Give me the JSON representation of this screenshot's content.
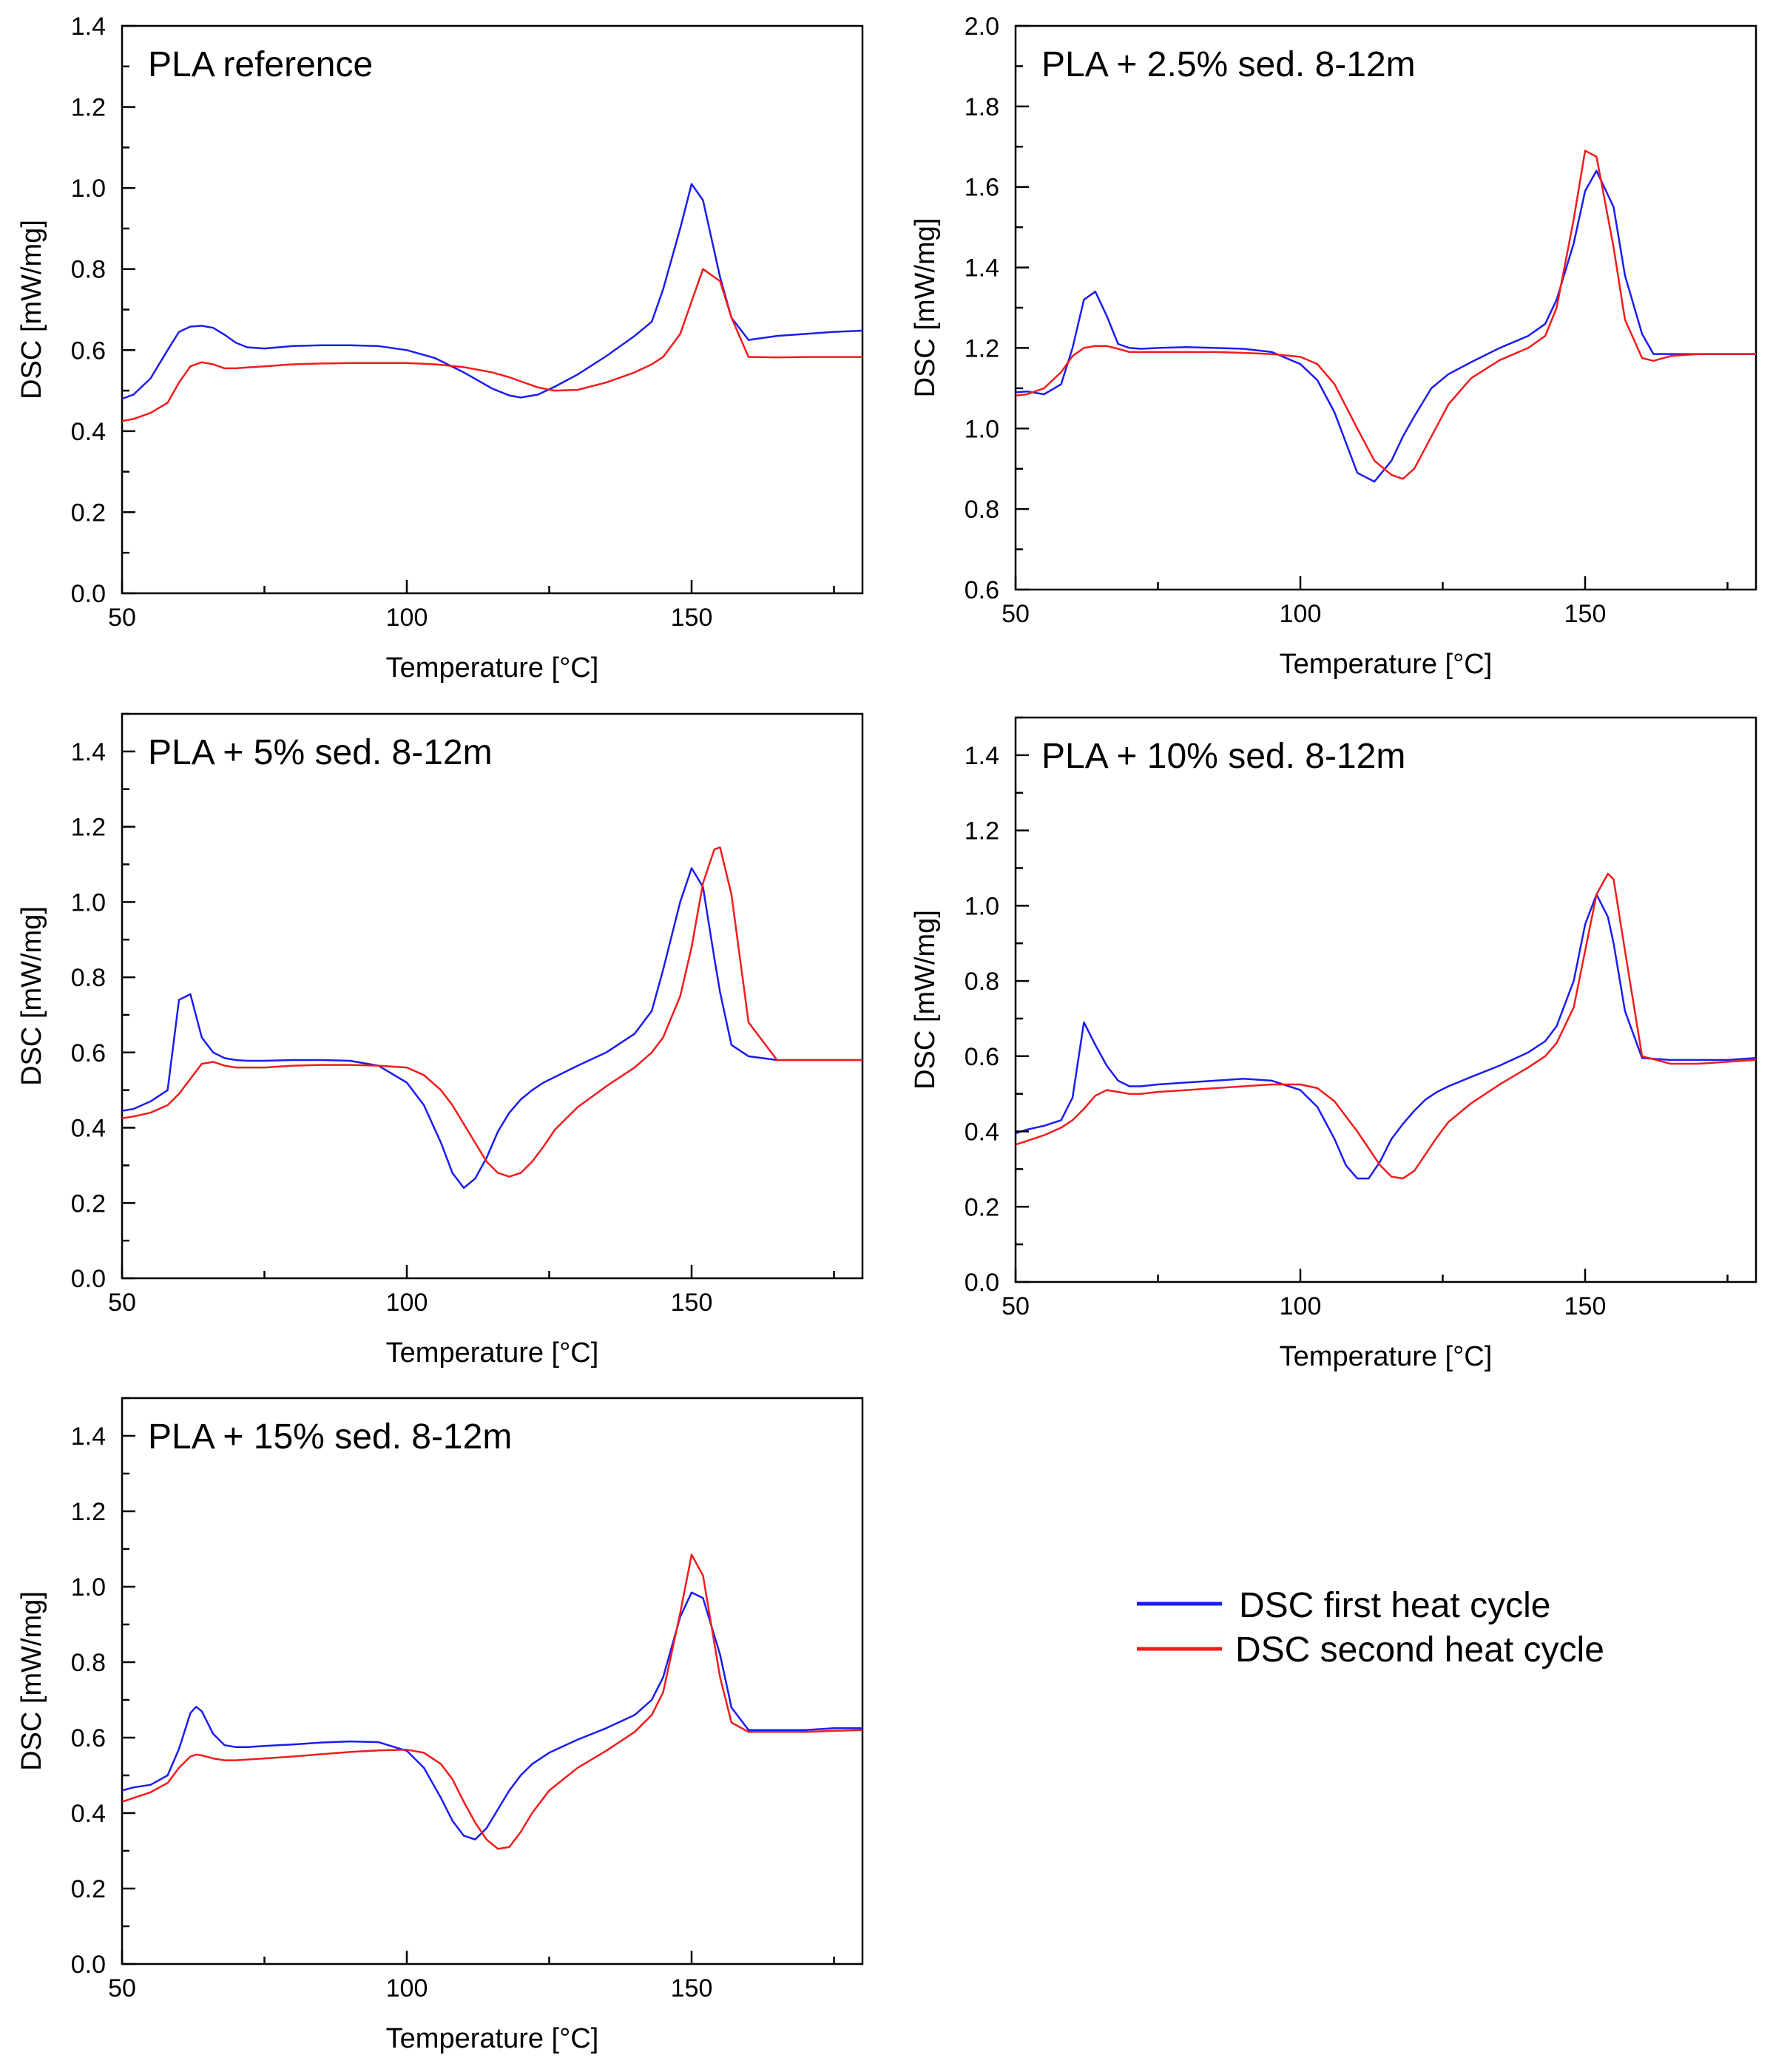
{
  "colors": {
    "first": "#1c1cf2",
    "second": "#f21c1c",
    "axis": "#000000",
    "background": "#ffffff"
  },
  "legend": {
    "first_label": "DSC first heat cycle",
    "second_label": "DSC second heat cycle",
    "position": "right"
  },
  "chart_data": [
    {
      "type": "line",
      "title": "PLA reference",
      "xlabel": "Temperature [°C]",
      "ylabel": "DSC [mW/mg]",
      "xlim": [
        50,
        180
      ],
      "ylim": [
        0.0,
        1.4
      ],
      "xticks": [
        50,
        100,
        150
      ],
      "yticks": [
        0.0,
        0.2,
        0.4,
        0.6,
        0.8,
        1.0,
        1.2,
        1.4
      ],
      "ytick_labels": [
        "0.0",
        "0.2",
        "0.4",
        "0.6",
        "0.8",
        "1.0",
        "1.2",
        "1.4"
      ],
      "x": [
        50,
        52,
        55,
        58,
        60,
        62,
        64,
        66,
        68,
        70,
        72,
        75,
        80,
        85,
        90,
        95,
        100,
        105,
        110,
        115,
        118,
        120,
        123,
        126,
        130,
        135,
        140,
        143,
        145,
        148,
        150,
        152,
        155,
        157,
        160,
        165,
        170,
        175,
        180
      ],
      "series": [
        {
          "name": "DSC first heat cycle",
          "values": [
            0.48,
            0.49,
            0.53,
            0.6,
            0.645,
            0.658,
            0.66,
            0.655,
            0.638,
            0.618,
            0.607,
            0.604,
            0.61,
            0.612,
            0.612,
            0.61,
            0.6,
            0.58,
            0.545,
            0.505,
            0.488,
            0.483,
            0.49,
            0.51,
            0.54,
            0.585,
            0.635,
            0.67,
            0.75,
            0.9,
            1.01,
            0.97,
            0.78,
            0.68,
            0.625,
            0.635,
            0.64,
            0.645,
            0.648
          ]
        },
        {
          "name": "DSC second heat cycle",
          "values": [
            0.425,
            0.43,
            0.445,
            0.47,
            0.52,
            0.56,
            0.57,
            0.565,
            0.555,
            0.555,
            0.557,
            0.56,
            0.565,
            0.567,
            0.568,
            0.568,
            0.568,
            0.565,
            0.558,
            0.545,
            0.533,
            0.523,
            0.508,
            0.5,
            0.502,
            0.52,
            0.545,
            0.565,
            0.583,
            0.64,
            0.72,
            0.8,
            0.77,
            0.68,
            0.583,
            0.582,
            0.583,
            0.583,
            0.583
          ]
        }
      ]
    },
    {
      "type": "line",
      "title": "PLA + 2.5% sed. 8-12m",
      "xlabel": "Temperature [°C]",
      "ylabel": "DSC [mW/mg]",
      "xlim": [
        50,
        180
      ],
      "ylim": [
        0.6,
        2.0
      ],
      "xticks": [
        50,
        100,
        150
      ],
      "yticks": [
        0.6,
        0.8,
        1.0,
        1.2,
        1.4,
        1.6,
        1.8,
        2.0
      ],
      "ytick_labels": [
        "0.6",
        "0.8",
        "1.0",
        "1.2",
        "1.4",
        "1.6",
        "1.8",
        "2.0"
      ],
      "x": [
        50,
        52,
        55,
        58,
        60,
        62,
        64,
        66,
        68,
        70,
        72,
        75,
        80,
        85,
        90,
        95,
        100,
        103,
        106,
        110,
        113,
        116,
        118,
        120,
        123,
        126,
        130,
        135,
        140,
        143,
        145,
        148,
        150,
        152,
        155,
        157,
        160,
        162,
        165,
        170,
        175,
        180
      ],
      "series": [
        {
          "name": "DSC first heat cycle",
          "values": [
            1.09,
            1.092,
            1.085,
            1.11,
            1.2,
            1.32,
            1.34,
            1.28,
            1.21,
            1.2,
            1.198,
            1.2,
            1.202,
            1.2,
            1.198,
            1.19,
            1.16,
            1.12,
            1.04,
            0.89,
            0.868,
            0.92,
            0.98,
            1.03,
            1.1,
            1.135,
            1.165,
            1.2,
            1.23,
            1.26,
            1.32,
            1.46,
            1.59,
            1.64,
            1.55,
            1.38,
            1.235,
            1.185,
            1.185,
            1.185,
            1.185,
            1.185
          ]
        },
        {
          "name": "DSC second heat cycle",
          "values": [
            1.082,
            1.085,
            1.1,
            1.14,
            1.18,
            1.2,
            1.205,
            1.205,
            1.198,
            1.19,
            1.19,
            1.19,
            1.19,
            1.19,
            1.188,
            1.185,
            1.178,
            1.16,
            1.11,
            1.0,
            0.92,
            0.885,
            0.875,
            0.9,
            0.98,
            1.06,
            1.125,
            1.17,
            1.2,
            1.23,
            1.3,
            1.52,
            1.69,
            1.675,
            1.45,
            1.27,
            1.175,
            1.168,
            1.18,
            1.185,
            1.185,
            1.185
          ]
        }
      ]
    },
    {
      "type": "line",
      "title": "PLA + 5% sed. 8-12m",
      "xlabel": "Temperature [°C]",
      "ylabel": "DSC [mW/mg]",
      "xlim": [
        50,
        180
      ],
      "ylim": [
        0.0,
        1.5
      ],
      "xticks": [
        50,
        100,
        150
      ],
      "yticks": [
        0.0,
        0.2,
        0.4,
        0.6,
        0.8,
        1.0,
        1.2,
        1.4
      ],
      "ytick_labels": [
        "0.0",
        "0.2",
        "0.4",
        "0.6",
        "0.8",
        "1.0",
        "1.2",
        "1.4"
      ],
      "x": [
        50,
        52,
        55,
        58,
        60,
        62,
        64,
        66,
        68,
        70,
        72,
        75,
        80,
        85,
        90,
        95,
        100,
        103,
        106,
        108,
        110,
        112,
        114,
        116,
        118,
        120,
        122,
        124,
        126,
        130,
        135,
        140,
        143,
        145,
        148,
        150,
        152,
        154,
        155,
        157,
        160,
        165,
        170,
        175,
        180
      ],
      "series": [
        {
          "name": "DSC first heat cycle",
          "values": [
            0.445,
            0.45,
            0.47,
            0.5,
            0.74,
            0.755,
            0.64,
            0.6,
            0.585,
            0.58,
            0.578,
            0.578,
            0.58,
            0.58,
            0.578,
            0.565,
            0.52,
            0.46,
            0.36,
            0.28,
            0.24,
            0.265,
            0.32,
            0.39,
            0.44,
            0.475,
            0.5,
            0.52,
            0.535,
            0.565,
            0.6,
            0.65,
            0.71,
            0.82,
            1.0,
            1.09,
            1.04,
            0.85,
            0.76,
            0.62,
            0.59,
            0.58,
            0.58,
            0.58,
            0.58
          ]
        },
        {
          "name": "DSC second heat cycle",
          "values": [
            0.425,
            0.43,
            0.44,
            0.46,
            0.49,
            0.53,
            0.57,
            0.575,
            0.565,
            0.56,
            0.56,
            0.56,
            0.565,
            0.567,
            0.567,
            0.565,
            0.56,
            0.54,
            0.5,
            0.46,
            0.41,
            0.36,
            0.31,
            0.28,
            0.27,
            0.28,
            0.31,
            0.35,
            0.395,
            0.455,
            0.51,
            0.56,
            0.6,
            0.64,
            0.75,
            0.88,
            1.05,
            1.14,
            1.145,
            1.02,
            0.68,
            0.58,
            0.58,
            0.58,
            0.58
          ]
        }
      ]
    },
    {
      "type": "line",
      "title": "PLA + 10% sed. 8-12m",
      "xlabel": "Temperature [°C]",
      "ylabel": "DSC [mW/mg]",
      "xlim": [
        50,
        180
      ],
      "ylim": [
        0.0,
        1.5
      ],
      "xticks": [
        50,
        100,
        150
      ],
      "yticks": [
        0.0,
        0.2,
        0.4,
        0.6,
        0.8,
        1.0,
        1.2,
        1.4
      ],
      "ytick_labels": [
        "0.0",
        "0.2",
        "0.4",
        "0.6",
        "0.8",
        "1.0",
        "1.2",
        "1.4"
      ],
      "x": [
        50,
        52,
        55,
        58,
        60,
        62,
        64,
        66,
        68,
        70,
        72,
        75,
        80,
        85,
        90,
        95,
        100,
        103,
        106,
        108,
        110,
        112,
        114,
        116,
        118,
        120,
        122,
        124,
        126,
        130,
        135,
        140,
        143,
        145,
        148,
        150,
        152,
        154,
        155,
        157,
        160,
        165,
        170,
        175,
        180
      ],
      "series": [
        {
          "name": "DSC first heat cycle",
          "values": [
            0.395,
            0.405,
            0.415,
            0.43,
            0.49,
            0.69,
            0.63,
            0.575,
            0.535,
            0.52,
            0.52,
            0.525,
            0.53,
            0.535,
            0.54,
            0.535,
            0.51,
            0.465,
            0.38,
            0.31,
            0.275,
            0.275,
            0.32,
            0.38,
            0.42,
            0.455,
            0.485,
            0.505,
            0.52,
            0.545,
            0.575,
            0.61,
            0.64,
            0.68,
            0.8,
            0.95,
            1.03,
            0.97,
            0.9,
            0.72,
            0.595,
            0.59,
            0.59,
            0.59,
            0.595
          ]
        },
        {
          "name": "DSC second heat cycle",
          "values": [
            0.365,
            0.375,
            0.39,
            0.41,
            0.43,
            0.46,
            0.495,
            0.51,
            0.505,
            0.5,
            0.5,
            0.505,
            0.51,
            0.515,
            0.52,
            0.525,
            0.525,
            0.515,
            0.48,
            0.44,
            0.4,
            0.355,
            0.31,
            0.28,
            0.275,
            0.295,
            0.34,
            0.385,
            0.425,
            0.475,
            0.525,
            0.57,
            0.6,
            0.635,
            0.73,
            0.88,
            1.03,
            1.085,
            1.07,
            0.88,
            0.6,
            0.58,
            0.58,
            0.585,
            0.59
          ]
        }
      ]
    },
    {
      "type": "line",
      "title": "PLA + 15% sed. 8-12m",
      "xlabel": "Temperature [°C]",
      "ylabel": "DSC [mW/mg]",
      "xlim": [
        50,
        180
      ],
      "ylim": [
        0.0,
        1.5
      ],
      "xticks": [
        50,
        100,
        150
      ],
      "yticks": [
        0.0,
        0.2,
        0.4,
        0.6,
        0.8,
        1.0,
        1.2,
        1.4
      ],
      "ytick_labels": [
        "0.0",
        "0.2",
        "0.4",
        "0.6",
        "0.8",
        "1.0",
        "1.2",
        "1.4"
      ],
      "x": [
        50,
        52,
        55,
        58,
        60,
        62,
        63,
        64,
        66,
        68,
        70,
        72,
        75,
        80,
        85,
        90,
        95,
        100,
        103,
        106,
        108,
        110,
        112,
        114,
        116,
        118,
        120,
        122,
        125,
        130,
        135,
        140,
        143,
        145,
        148,
        150,
        152,
        155,
        157,
        160,
        165,
        170,
        175,
        180
      ],
      "series": [
        {
          "name": "DSC first heat cycle",
          "values": [
            0.46,
            0.468,
            0.475,
            0.5,
            0.57,
            0.665,
            0.682,
            0.67,
            0.61,
            0.58,
            0.575,
            0.575,
            0.578,
            0.582,
            0.587,
            0.59,
            0.588,
            0.565,
            0.52,
            0.44,
            0.38,
            0.34,
            0.33,
            0.36,
            0.41,
            0.46,
            0.5,
            0.53,
            0.56,
            0.595,
            0.625,
            0.66,
            0.7,
            0.76,
            0.92,
            0.985,
            0.97,
            0.82,
            0.68,
            0.62,
            0.62,
            0.62,
            0.625,
            0.625
          ]
        },
        {
          "name": "DSC second heat cycle",
          "values": [
            0.43,
            0.44,
            0.455,
            0.48,
            0.52,
            0.55,
            0.555,
            0.553,
            0.545,
            0.54,
            0.54,
            0.542,
            0.545,
            0.55,
            0.556,
            0.562,
            0.566,
            0.568,
            0.56,
            0.53,
            0.49,
            0.43,
            0.375,
            0.33,
            0.305,
            0.31,
            0.35,
            0.4,
            0.46,
            0.52,
            0.565,
            0.615,
            0.66,
            0.72,
            0.93,
            1.085,
            1.03,
            0.76,
            0.64,
            0.615,
            0.615,
            0.615,
            0.618,
            0.62
          ]
        }
      ]
    }
  ]
}
